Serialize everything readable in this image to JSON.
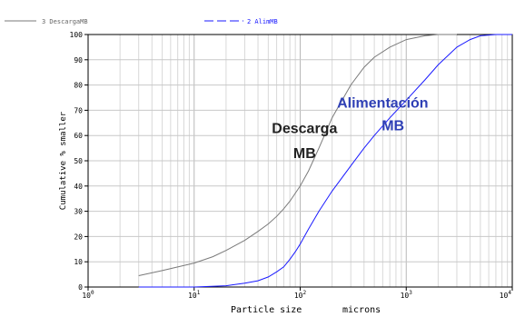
{
  "chart_data": {
    "type": "line",
    "xlabel": "Particle size",
    "xunit": "microns",
    "ylabel": "Cumulative % smaller",
    "x_scale": "log",
    "xlim": [
      1,
      10000
    ],
    "ylim": [
      0,
      100
    ],
    "grid": true,
    "legend_position": "top",
    "y_ticks": [
      {
        "value": 0,
        "label": "0"
      },
      {
        "value": 10,
        "label": "10"
      },
      {
        "value": 20,
        "label": "20"
      },
      {
        "value": 30,
        "label": "30"
      },
      {
        "value": 40,
        "label": "40"
      },
      {
        "value": 50,
        "label": "50"
      },
      {
        "value": 60,
        "label": "60"
      },
      {
        "value": 70,
        "label": "70"
      },
      {
        "value": 80,
        "label": "80"
      },
      {
        "value": 90,
        "label": "90"
      },
      {
        "value": 100,
        "label": "100"
      }
    ],
    "x_ticks": [
      {
        "value": 1,
        "base": "10",
        "exp": "0"
      },
      {
        "value": 10,
        "base": "10",
        "exp": "1"
      },
      {
        "value": 100,
        "base": "10",
        "exp": "2"
      },
      {
        "value": 1000,
        "base": "10",
        "exp": "3"
      },
      {
        "value": 10000,
        "base": "10",
        "exp": "4"
      }
    ],
    "series": [
      {
        "name": "3 DescargaMB",
        "color": "#7a7a7a",
        "line_style": "solid",
        "x": [
          3,
          5,
          10,
          15,
          20,
          30,
          40,
          50,
          60,
          70,
          80,
          100,
          120,
          150,
          200,
          300,
          400,
          500,
          700,
          1000,
          1500,
          2000,
          3000
        ],
        "y": [
          4.5,
          6.5,
          9.5,
          12,
          14.5,
          18.5,
          22,
          25,
          28,
          31,
          34,
          40,
          46,
          55,
          67,
          80,
          87,
          91,
          95,
          98,
          99.5,
          100,
          100
        ]
      },
      {
        "name": "2 AlimMB",
        "color": "#1a1aff",
        "line_style": "dashed",
        "x": [
          3,
          10,
          20,
          30,
          40,
          50,
          60,
          70,
          80,
          90,
          100,
          120,
          150,
          200,
          300,
          400,
          500,
          700,
          1000,
          1500,
          2000,
          3000,
          4000,
          5000,
          7000,
          10000
        ],
        "y": [
          0,
          0,
          0.5,
          1.5,
          2.5,
          4,
          6,
          8,
          11,
          14,
          17,
          23,
          30,
          38,
          48,
          55,
          60,
          67,
          74,
          82,
          88,
          95,
          98,
          99.5,
          100,
          100
        ]
      }
    ],
    "annotations": [
      {
        "text": "Descarga",
        "x": 110,
        "y": 61,
        "color": "#222222"
      },
      {
        "text": "MB",
        "x": 110,
        "y": 51,
        "color": "#222222"
      },
      {
        "text": "Alimentación",
        "x": 600,
        "y": 71,
        "color": "#2e3fb5"
      },
      {
        "text": "MB",
        "x": 750,
        "y": 62,
        "color": "#2e3fb5"
      }
    ]
  }
}
